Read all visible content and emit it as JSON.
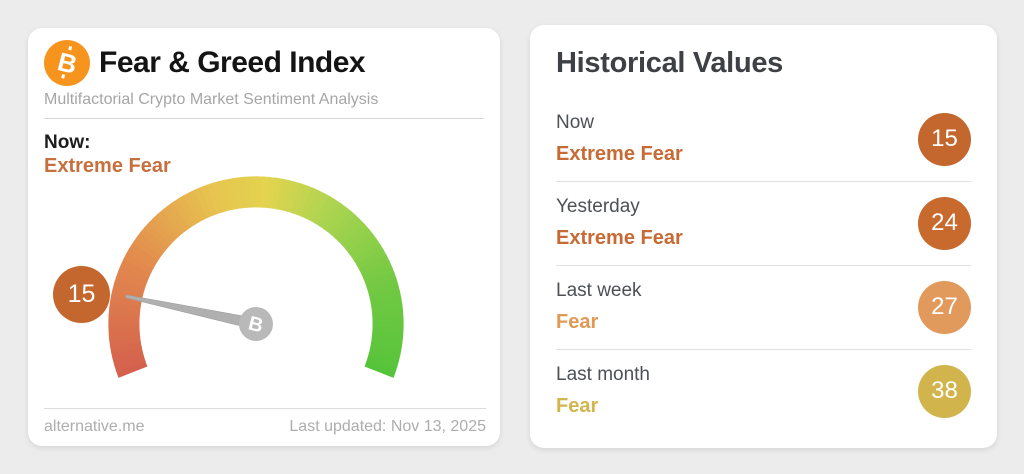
{
  "page": {
    "background": "#ececec"
  },
  "left_card": {
    "icon": "bitcoin",
    "icon_letter": "B",
    "title": "Fear & Greed Index",
    "subtitle": "Multifactorial Crypto Market Sentiment Analysis",
    "now_label": "Now:",
    "now_value": "Extreme Fear",
    "now_color": "#c76f3d",
    "badge": {
      "value": "15",
      "color": "#c4672f"
    },
    "footer": {
      "source": "alternative.me",
      "updated": "Last updated: Nov 13, 2025"
    }
  },
  "right_card": {
    "title": "Historical Values",
    "rows": [
      {
        "label": "Now",
        "status": "Extreme Fear",
        "value": "15",
        "status_color": "#c76a33",
        "badge_color": "#c4672f"
      },
      {
        "label": "Yesterday",
        "status": "Extreme Fear",
        "value": "24",
        "status_color": "#c76a33",
        "badge_color": "#c8692e"
      },
      {
        "label": "Last week",
        "status": "Fear",
        "value": "27",
        "status_color": "#e09a56",
        "badge_color": "#e19a5b"
      },
      {
        "label": "Last month",
        "status": "Fear",
        "value": "38",
        "status_color": "#d2b54c",
        "badge_color": "#d1b44b"
      }
    ]
  },
  "chart_data": {
    "type": "gauge",
    "title": "Fear & Greed Index",
    "subtitle": "Multifactorial Crypto Market Sentiment Analysis",
    "value": 15,
    "min": 0,
    "max": 100,
    "classification": "Extreme Fear",
    "start_angle_deg": 158.6,
    "sweep_deg": 222.8,
    "arc_thickness": 31,
    "color_stops": [
      {
        "t": 0.0,
        "color": "#d4604d"
      },
      {
        "t": 0.22,
        "color": "#e28a4e"
      },
      {
        "t": 0.42,
        "color": "#e7c44f"
      },
      {
        "t": 0.52,
        "color": "#e3d44f"
      },
      {
        "t": 0.65,
        "color": "#abd450"
      },
      {
        "t": 0.82,
        "color": "#74c943"
      },
      {
        "t": 1.0,
        "color": "#55c43a"
      }
    ],
    "needle_color": "#b0b0b0",
    "hub_color": "#b9b9b9",
    "hub_letter": "B",
    "historical": [
      {
        "period": "Now",
        "value": 15,
        "classification": "Extreme Fear"
      },
      {
        "period": "Yesterday",
        "value": 24,
        "classification": "Extreme Fear"
      },
      {
        "period": "Last week",
        "value": 27,
        "classification": "Fear"
      },
      {
        "period": "Last month",
        "value": 38,
        "classification": "Fear"
      }
    ],
    "last_updated": "Nov 13, 2025"
  }
}
